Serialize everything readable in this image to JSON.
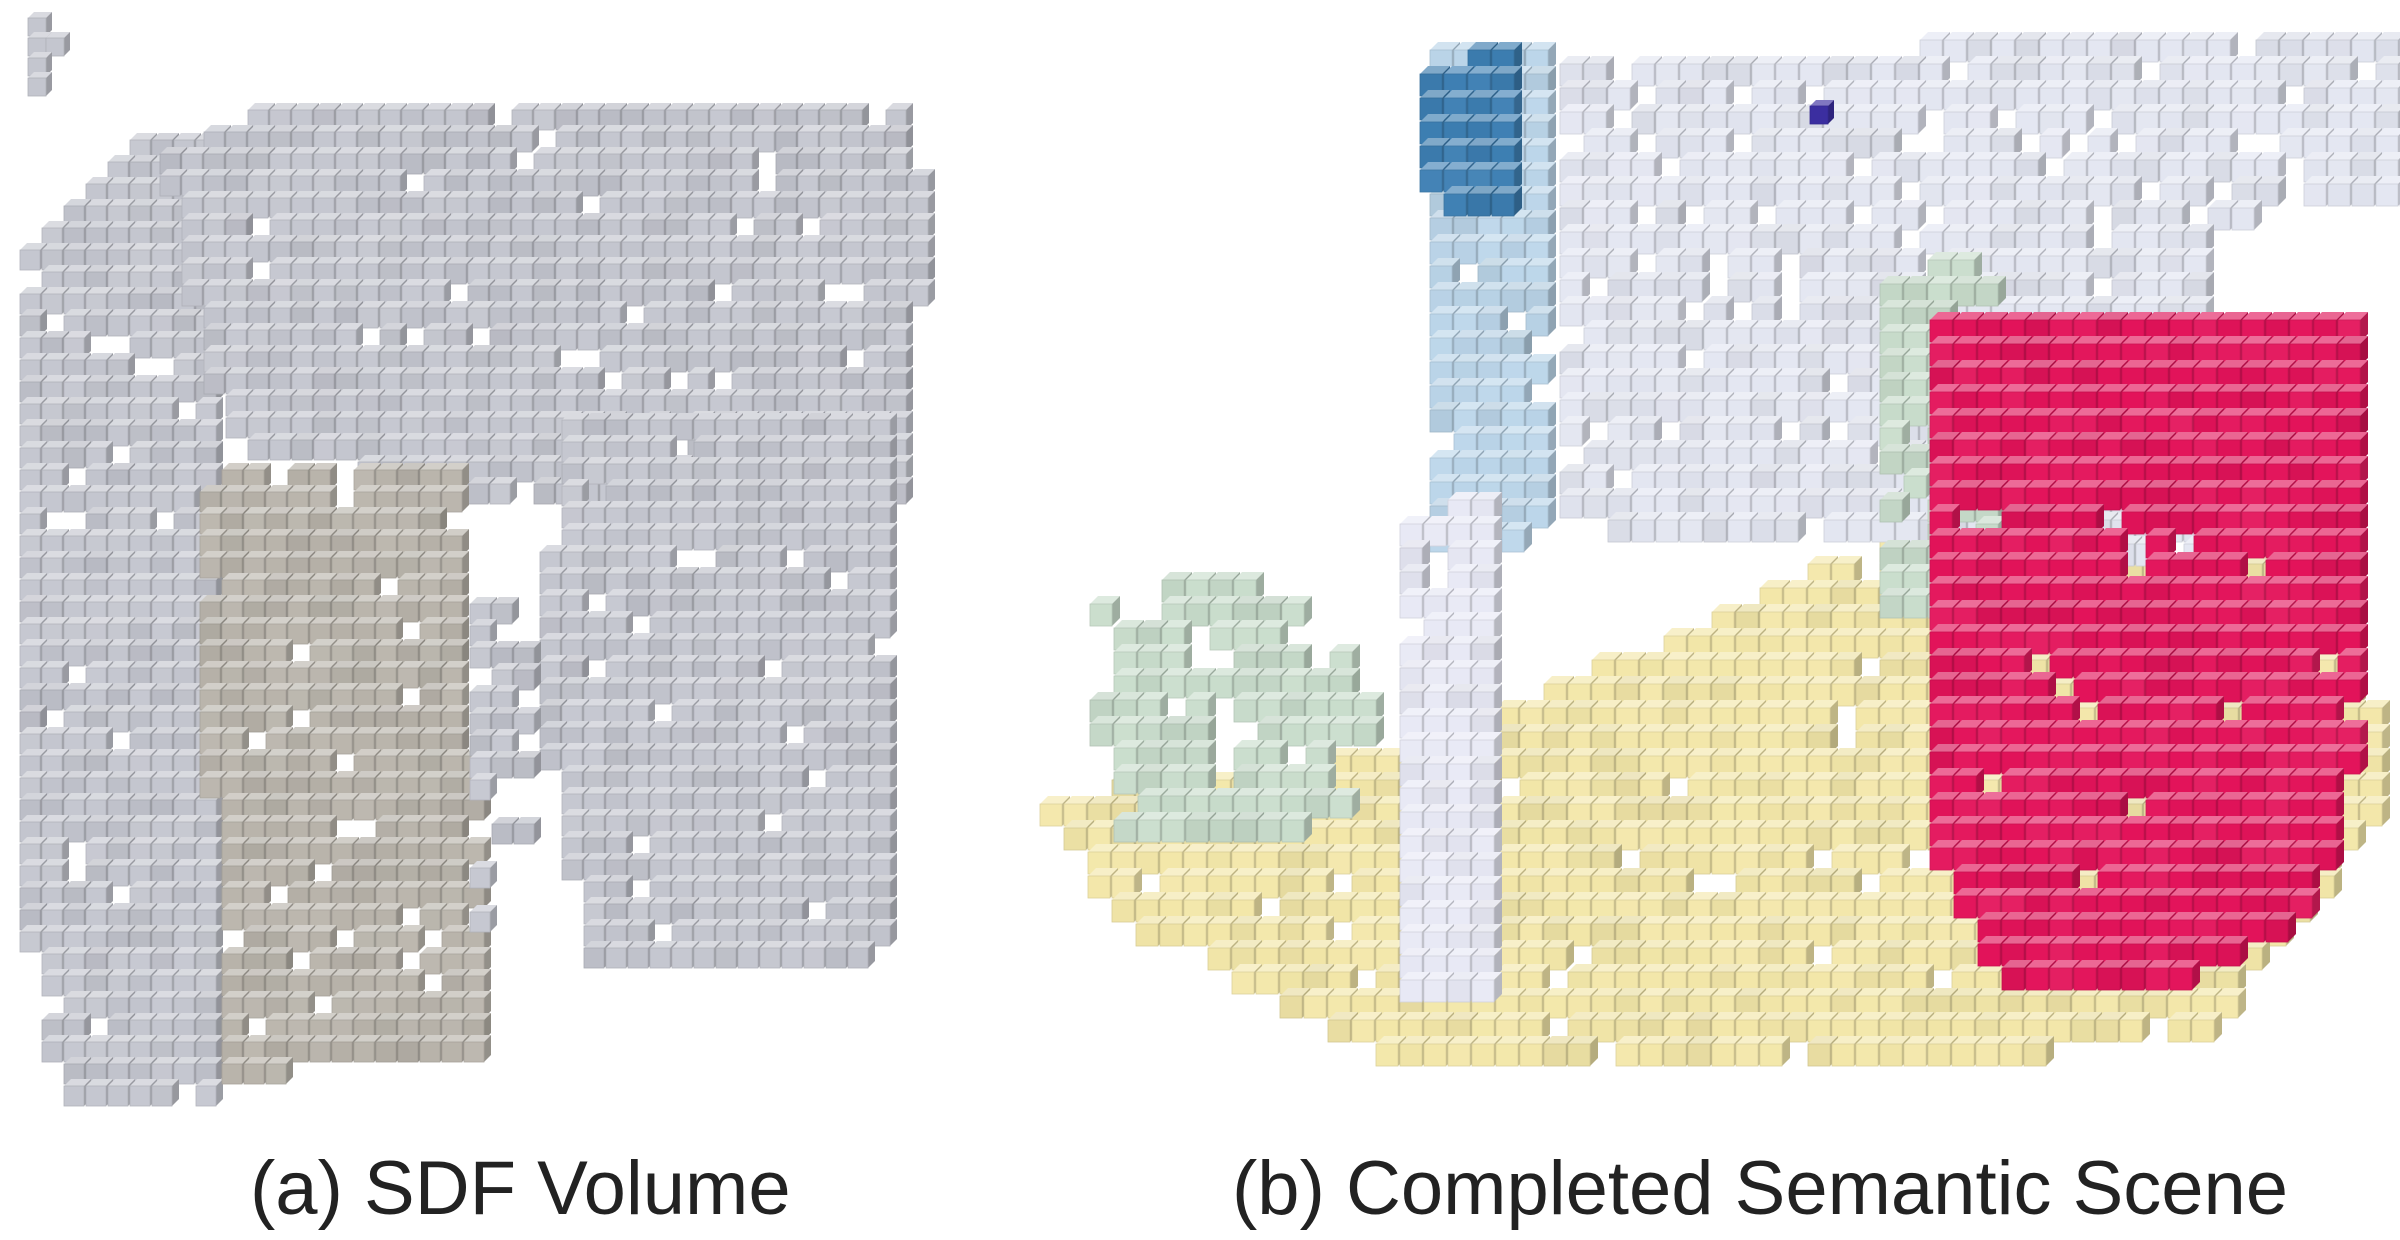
{
  "figure": {
    "panels": [
      {
        "id": "a",
        "caption": "(a) SDF Volume",
        "voxel_color": "#c4c6cf"
      },
      {
        "id": "b",
        "caption": "(b) Completed Semantic Scene"
      }
    ],
    "semantic_colors": {
      "floor": "#f3e7a9",
      "wall": "#e3e6f1",
      "window": "#bcd6ea",
      "window_dark": "#3d7fb3",
      "furniture_green": "#c9ddcc",
      "sofa": "#e3135a",
      "object_dark": "#3b2ea0"
    }
  }
}
